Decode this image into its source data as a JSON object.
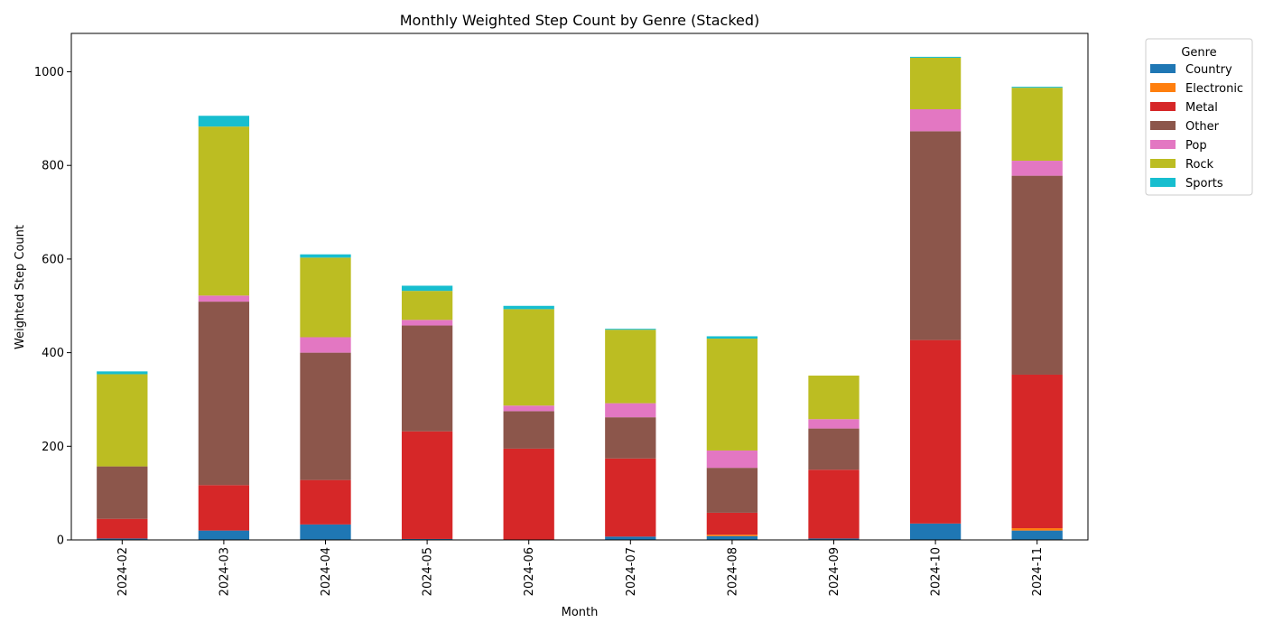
{
  "chart_data": {
    "type": "bar",
    "stacked": true,
    "title": "Monthly Weighted Step Count by Genre (Stacked)",
    "xlabel": "Month",
    "ylabel": "Weighted Step Count",
    "ylim": [
      0,
      1082
    ],
    "yticks": [
      0,
      200,
      400,
      600,
      800,
      1000
    ],
    "categories": [
      "2024-02",
      "2024-03",
      "2024-04",
      "2024-05",
      "2024-06",
      "2024-07",
      "2024-08",
      "2024-09",
      "2024-10",
      "2024-11"
    ],
    "legend": {
      "title": "Genre",
      "placement": "outside-right"
    },
    "series": [
      {
        "name": "Country",
        "color": "#1f77b4",
        "values": [
          3,
          20,
          33,
          2,
          0,
          7,
          8,
          3,
          35,
          20
        ]
      },
      {
        "name": "Electronic",
        "color": "#ff7f0e",
        "values": [
          0,
          0,
          0,
          0,
          0,
          0,
          3,
          0,
          0,
          5
        ]
      },
      {
        "name": "Metal",
        "color": "#d62728",
        "values": [
          42,
          97,
          95,
          230,
          195,
          167,
          47,
          147,
          392,
          328
        ]
      },
      {
        "name": "Other",
        "color": "#8c564b",
        "values": [
          112,
          392,
          272,
          226,
          80,
          88,
          96,
          88,
          446,
          425
        ]
      },
      {
        "name": "Pop",
        "color": "#e377c2",
        "values": [
          0,
          13,
          33,
          12,
          12,
          30,
          37,
          20,
          47,
          32
        ]
      },
      {
        "name": "Rock",
        "color": "#bcbd22",
        "values": [
          197,
          361,
          170,
          62,
          206,
          157,
          239,
          93,
          110,
          156
        ]
      },
      {
        "name": "Sports",
        "color": "#17becf",
        "values": [
          6,
          23,
          7,
          11,
          7,
          2,
          5,
          0,
          2,
          2
        ]
      }
    ]
  }
}
